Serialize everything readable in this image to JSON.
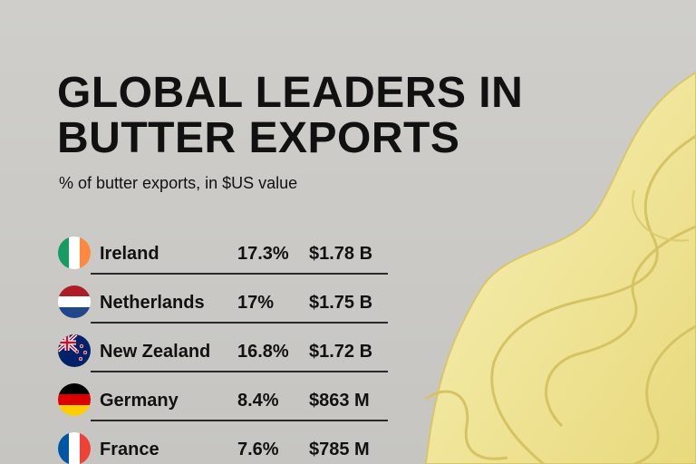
{
  "header": {
    "title": [
      "GLOBAL LEADERS IN",
      "BUTTER EXPORTS"
    ],
    "subtitle": "% of butter exports, in $US value"
  },
  "table": {
    "rows": [
      [
        "Ireland",
        "17.3%",
        "$1.78 B"
      ],
      [
        "Netherlands",
        "17%",
        "$1.75 B"
      ],
      [
        "New Zealand",
        "16.8%",
        "$1.72 B"
      ],
      [
        "Germany",
        "8.4%",
        "$863 M"
      ],
      [
        "France",
        "7.6%",
        "$785 M"
      ]
    ]
  }
}
